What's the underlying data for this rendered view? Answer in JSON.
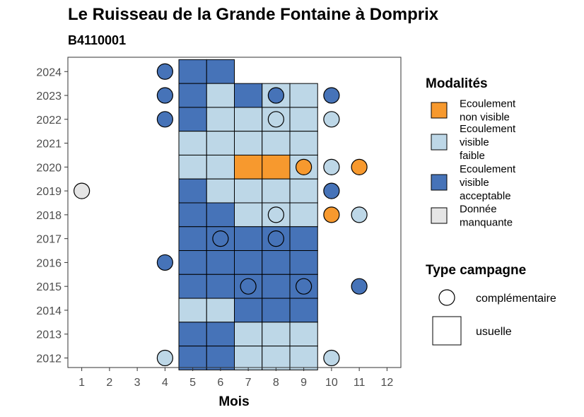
{
  "chart_data": {
    "type": "heatmap",
    "title": "Le Ruisseau de la Grande Fontaine à Domprix",
    "subtitle": "B4110001",
    "xlabel": "Mois",
    "ylabel": "",
    "x_ticks": [
      "1",
      "2",
      "3",
      "4",
      "5",
      "6",
      "7",
      "8",
      "9",
      "10",
      "11",
      "12"
    ],
    "y_ticks": [
      "2012",
      "2013",
      "2014",
      "2015",
      "2016",
      "2017",
      "2018",
      "2019",
      "2020",
      "2021",
      "2022",
      "2023",
      "2024"
    ],
    "xlim": [
      0.5,
      12.5
    ],
    "ylim": [
      2011.6,
      2024.6
    ],
    "legend_placement": "right",
    "colors": {
      "Ecoulement non visible": "#f7992e",
      "Ecoulement visible faible": "#bdd7e7",
      "Ecoulement visible acceptable": "#4673b8",
      "Donnée manquante": "#e5e5e5"
    },
    "legend_modalites": {
      "title": "Modalités",
      "items": [
        {
          "key": "Ecoulement non visible",
          "lines": [
            "Ecoulement",
            "non visible"
          ]
        },
        {
          "key": "Ecoulement visible faible",
          "lines": [
            "Ecoulement",
            "visible",
            "faible"
          ]
        },
        {
          "key": "Ecoulement visible acceptable",
          "lines": [
            "Ecoulement",
            "visible",
            "acceptable"
          ]
        },
        {
          "key": "Donnée manquante",
          "lines": [
            "Donnée",
            "manquante"
          ]
        }
      ]
    },
    "legend_campagne": {
      "title": "Type campagne",
      "items": [
        {
          "shape": "circle",
          "label": "complémentaire"
        },
        {
          "shape": "square",
          "label": "usuelle"
        }
      ]
    },
    "usuelle": [
      {
        "year": 2024,
        "month": 5,
        "value": "Ecoulement visible acceptable"
      },
      {
        "year": 2024,
        "month": 6,
        "value": "Ecoulement visible acceptable"
      },
      {
        "year": 2023,
        "month": 5,
        "value": "Ecoulement visible acceptable"
      },
      {
        "year": 2023,
        "month": 6,
        "value": "Ecoulement visible faible"
      },
      {
        "year": 2023,
        "month": 7,
        "value": "Ecoulement visible acceptable"
      },
      {
        "year": 2023,
        "month": 8,
        "value": "Ecoulement visible faible"
      },
      {
        "year": 2023,
        "month": 9,
        "value": "Ecoulement visible faible"
      },
      {
        "year": 2022,
        "month": 5,
        "value": "Ecoulement visible acceptable"
      },
      {
        "year": 2022,
        "month": 6,
        "value": "Ecoulement visible faible"
      },
      {
        "year": 2022,
        "month": 7,
        "value": "Ecoulement visible faible"
      },
      {
        "year": 2022,
        "month": 8,
        "value": "Ecoulement visible faible"
      },
      {
        "year": 2022,
        "month": 9,
        "value": "Ecoulement visible faible"
      },
      {
        "year": 2021,
        "month": 5,
        "value": "Ecoulement visible faible"
      },
      {
        "year": 2021,
        "month": 6,
        "value": "Ecoulement visible faible"
      },
      {
        "year": 2021,
        "month": 7,
        "value": "Ecoulement visible faible"
      },
      {
        "year": 2021,
        "month": 8,
        "value": "Ecoulement visible faible"
      },
      {
        "year": 2021,
        "month": 9,
        "value": "Ecoulement visible faible"
      },
      {
        "year": 2020,
        "month": 5,
        "value": "Ecoulement visible faible"
      },
      {
        "year": 2020,
        "month": 6,
        "value": "Ecoulement visible faible"
      },
      {
        "year": 2020,
        "month": 7,
        "value": "Ecoulement non visible"
      },
      {
        "year": 2020,
        "month": 8,
        "value": "Ecoulement non visible"
      },
      {
        "year": 2020,
        "month": 9,
        "value": "Ecoulement visible faible"
      },
      {
        "year": 2019,
        "month": 5,
        "value": "Ecoulement visible acceptable"
      },
      {
        "year": 2019,
        "month": 6,
        "value": "Ecoulement visible faible"
      },
      {
        "year": 2019,
        "month": 7,
        "value": "Ecoulement visible faible"
      },
      {
        "year": 2019,
        "month": 8,
        "value": "Ecoulement visible faible"
      },
      {
        "year": 2019,
        "month": 9,
        "value": "Ecoulement visible faible"
      },
      {
        "year": 2018,
        "month": 5,
        "value": "Ecoulement visible acceptable"
      },
      {
        "year": 2018,
        "month": 6,
        "value": "Ecoulement visible acceptable"
      },
      {
        "year": 2018,
        "month": 7,
        "value": "Ecoulement visible faible"
      },
      {
        "year": 2018,
        "month": 8,
        "value": "Ecoulement visible faible"
      },
      {
        "year": 2018,
        "month": 9,
        "value": "Ecoulement visible faible"
      },
      {
        "year": 2017,
        "month": 5,
        "value": "Ecoulement visible acceptable"
      },
      {
        "year": 2017,
        "month": 6,
        "value": "Ecoulement visible acceptable"
      },
      {
        "year": 2017,
        "month": 7,
        "value": "Ecoulement visible acceptable"
      },
      {
        "year": 2017,
        "month": 8,
        "value": "Ecoulement visible acceptable"
      },
      {
        "year": 2017,
        "month": 9,
        "value": "Ecoulement visible acceptable"
      },
      {
        "year": 2016,
        "month": 5,
        "value": "Ecoulement visible acceptable"
      },
      {
        "year": 2016,
        "month": 6,
        "value": "Ecoulement visible acceptable"
      },
      {
        "year": 2016,
        "month": 7,
        "value": "Ecoulement visible acceptable"
      },
      {
        "year": 2016,
        "month": 8,
        "value": "Ecoulement visible acceptable"
      },
      {
        "year": 2016,
        "month": 9,
        "value": "Ecoulement visible acceptable"
      },
      {
        "year": 2015,
        "month": 5,
        "value": "Ecoulement visible acceptable"
      },
      {
        "year": 2015,
        "month": 6,
        "value": "Ecoulement visible acceptable"
      },
      {
        "year": 2015,
        "month": 7,
        "value": "Ecoulement visible acceptable"
      },
      {
        "year": 2015,
        "month": 8,
        "value": "Ecoulement visible acceptable"
      },
      {
        "year": 2015,
        "month": 9,
        "value": "Ecoulement visible acceptable"
      },
      {
        "year": 2014,
        "month": 5,
        "value": "Ecoulement visible faible"
      },
      {
        "year": 2014,
        "month": 6,
        "value": "Ecoulement visible faible"
      },
      {
        "year": 2014,
        "month": 7,
        "value": "Ecoulement visible acceptable"
      },
      {
        "year": 2014,
        "month": 8,
        "value": "Ecoulement visible acceptable"
      },
      {
        "year": 2014,
        "month": 9,
        "value": "Ecoulement visible acceptable"
      },
      {
        "year": 2013,
        "month": 5,
        "value": "Ecoulement visible acceptable"
      },
      {
        "year": 2013,
        "month": 6,
        "value": "Ecoulement visible acceptable"
      },
      {
        "year": 2013,
        "month": 7,
        "value": "Ecoulement visible faible"
      },
      {
        "year": 2013,
        "month": 8,
        "value": "Ecoulement visible faible"
      },
      {
        "year": 2013,
        "month": 9,
        "value": "Ecoulement visible faible"
      },
      {
        "year": 2012,
        "month": 5,
        "value": "Ecoulement visible acceptable"
      },
      {
        "year": 2012,
        "month": 6,
        "value": "Ecoulement visible acceptable"
      },
      {
        "year": 2012,
        "month": 7,
        "value": "Ecoulement visible faible"
      },
      {
        "year": 2012,
        "month": 8,
        "value": "Ecoulement visible faible"
      },
      {
        "year": 2012,
        "month": 9,
        "value": "Ecoulement visible faible"
      }
    ],
    "complementaire": [
      {
        "year": 2024,
        "month": 4,
        "value": "Ecoulement visible acceptable"
      },
      {
        "year": 2023,
        "month": 4,
        "value": "Ecoulement visible acceptable"
      },
      {
        "year": 2023,
        "month": 8,
        "value": "Ecoulement visible acceptable"
      },
      {
        "year": 2023,
        "month": 10,
        "value": "Ecoulement visible acceptable"
      },
      {
        "year": 2022,
        "month": 4,
        "value": "Ecoulement visible acceptable"
      },
      {
        "year": 2022,
        "month": 8,
        "value": "Ecoulement visible faible"
      },
      {
        "year": 2022,
        "month": 10,
        "value": "Ecoulement visible faible"
      },
      {
        "year": 2020,
        "month": 9,
        "value": "Ecoulement non visible"
      },
      {
        "year": 2020,
        "month": 10,
        "value": "Ecoulement visible faible"
      },
      {
        "year": 2020,
        "month": 11,
        "value": "Ecoulement non visible"
      },
      {
        "year": 2019,
        "month": 1,
        "value": "Donnée manquante"
      },
      {
        "year": 2019,
        "month": 10,
        "value": "Ecoulement visible acceptable"
      },
      {
        "year": 2018,
        "month": 8,
        "value": "Ecoulement visible faible"
      },
      {
        "year": 2018,
        "month": 10,
        "value": "Ecoulement non visible"
      },
      {
        "year": 2018,
        "month": 11,
        "value": "Ecoulement visible faible"
      },
      {
        "year": 2017,
        "month": 6,
        "value": "Ecoulement visible acceptable"
      },
      {
        "year": 2017,
        "month": 8,
        "value": "Ecoulement visible acceptable"
      },
      {
        "year": 2016,
        "month": 4,
        "value": "Ecoulement visible acceptable"
      },
      {
        "year": 2015,
        "month": 7,
        "value": "Ecoulement visible acceptable"
      },
      {
        "year": 2015,
        "month": 9,
        "value": "Ecoulement visible acceptable"
      },
      {
        "year": 2015,
        "month": 11,
        "value": "Ecoulement visible acceptable"
      },
      {
        "year": 2012,
        "month": 4,
        "value": "Ecoulement visible faible"
      },
      {
        "year": 2012,
        "month": 10,
        "value": "Ecoulement visible faible"
      }
    ]
  }
}
